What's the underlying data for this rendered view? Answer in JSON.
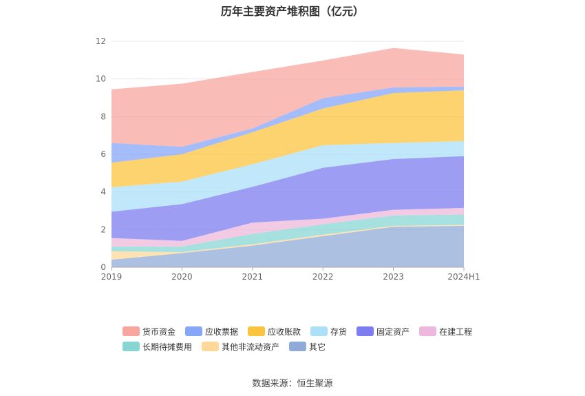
{
  "chart_data": {
    "type": "area",
    "stacked": true,
    "title": "历年主要资产堆积图（亿元）",
    "categories": [
      "2019",
      "2020",
      "2021",
      "2022",
      "2023",
      "2024H1"
    ],
    "ylim": [
      0,
      12
    ],
    "yticks": [
      "0",
      "2",
      "4",
      "6",
      "8",
      "10",
      "12"
    ],
    "grid": true,
    "legend_position": "bottom",
    "series": [
      {
        "name": "其它",
        "color": "#90abd7",
        "values": [
          0.4,
          0.75,
          1.15,
          1.65,
          2.15,
          2.2
        ]
      },
      {
        "name": "其他非流动资产",
        "color": "#ffd89a",
        "values": [
          0.45,
          0.05,
          0.07,
          0.08,
          0.05,
          0.05
        ]
      },
      {
        "name": "长期待摊费用",
        "color": "#88d6d4",
        "values": [
          0.25,
          0.3,
          0.55,
          0.55,
          0.55,
          0.55
        ]
      },
      {
        "name": "在建工程",
        "color": "#edb8db",
        "values": [
          0.45,
          0.3,
          0.6,
          0.3,
          0.3,
          0.35
        ]
      },
      {
        "name": "固定资产",
        "color": "#7d7cf0",
        "values": [
          1.4,
          1.95,
          1.9,
          2.7,
          2.7,
          2.75
        ]
      },
      {
        "name": "存货",
        "color": "#acdff8",
        "values": [
          1.3,
          1.2,
          1.2,
          1.2,
          0.85,
          0.8
        ]
      },
      {
        "name": "应收账款",
        "color": "#fbc43f",
        "values": [
          1.3,
          1.45,
          1.7,
          1.95,
          2.65,
          2.7
        ]
      },
      {
        "name": "应收票据",
        "color": "#86a6f7",
        "values": [
          1.05,
          0.4,
          0.2,
          0.55,
          0.3,
          0.2
        ]
      },
      {
        "name": "货币资金",
        "color": "#f8a59e",
        "values": [
          2.85,
          3.35,
          3.0,
          2.0,
          2.1,
          1.7
        ]
      }
    ],
    "legend_order": [
      "货币资金",
      "应收票据",
      "应收账款",
      "存货",
      "固定资产",
      "在建工程",
      "长期待摊费用",
      "其他非流动资产",
      "其它"
    ]
  },
  "source": "数据来源：恒生聚源"
}
